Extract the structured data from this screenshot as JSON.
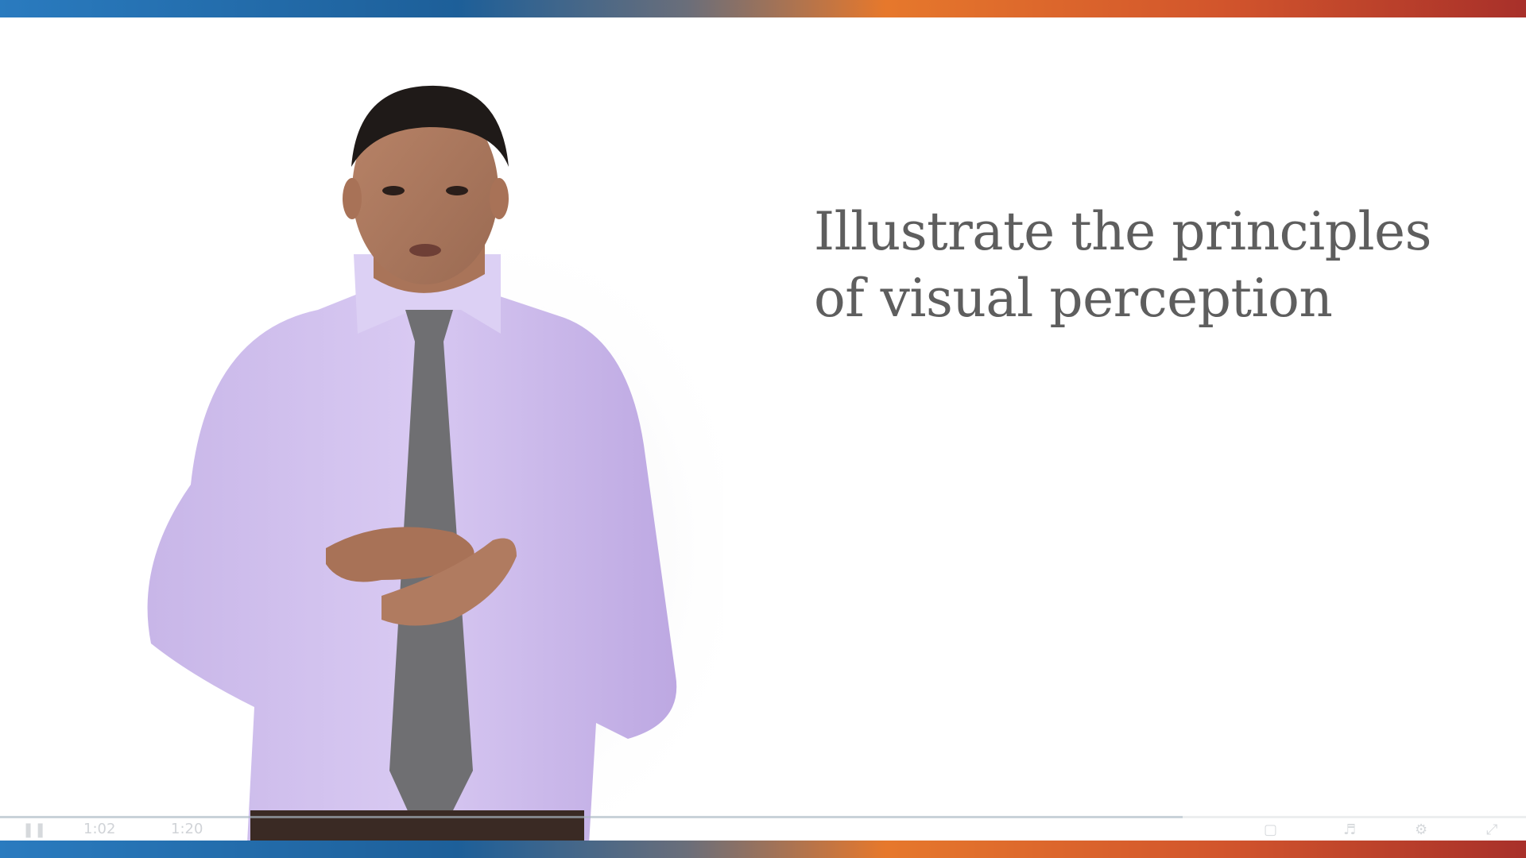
{
  "slide": {
    "line1": "Illustrate the principles",
    "line2": "of visual perception"
  },
  "player": {
    "current_time": "1:02",
    "duration": "1:20",
    "progress": 0.775
  },
  "colors": {
    "bar_left": "#1f6fb0",
    "bar_mid": "#e6782c",
    "bar_right": "#b8302a",
    "text": "#5e5e5e"
  }
}
